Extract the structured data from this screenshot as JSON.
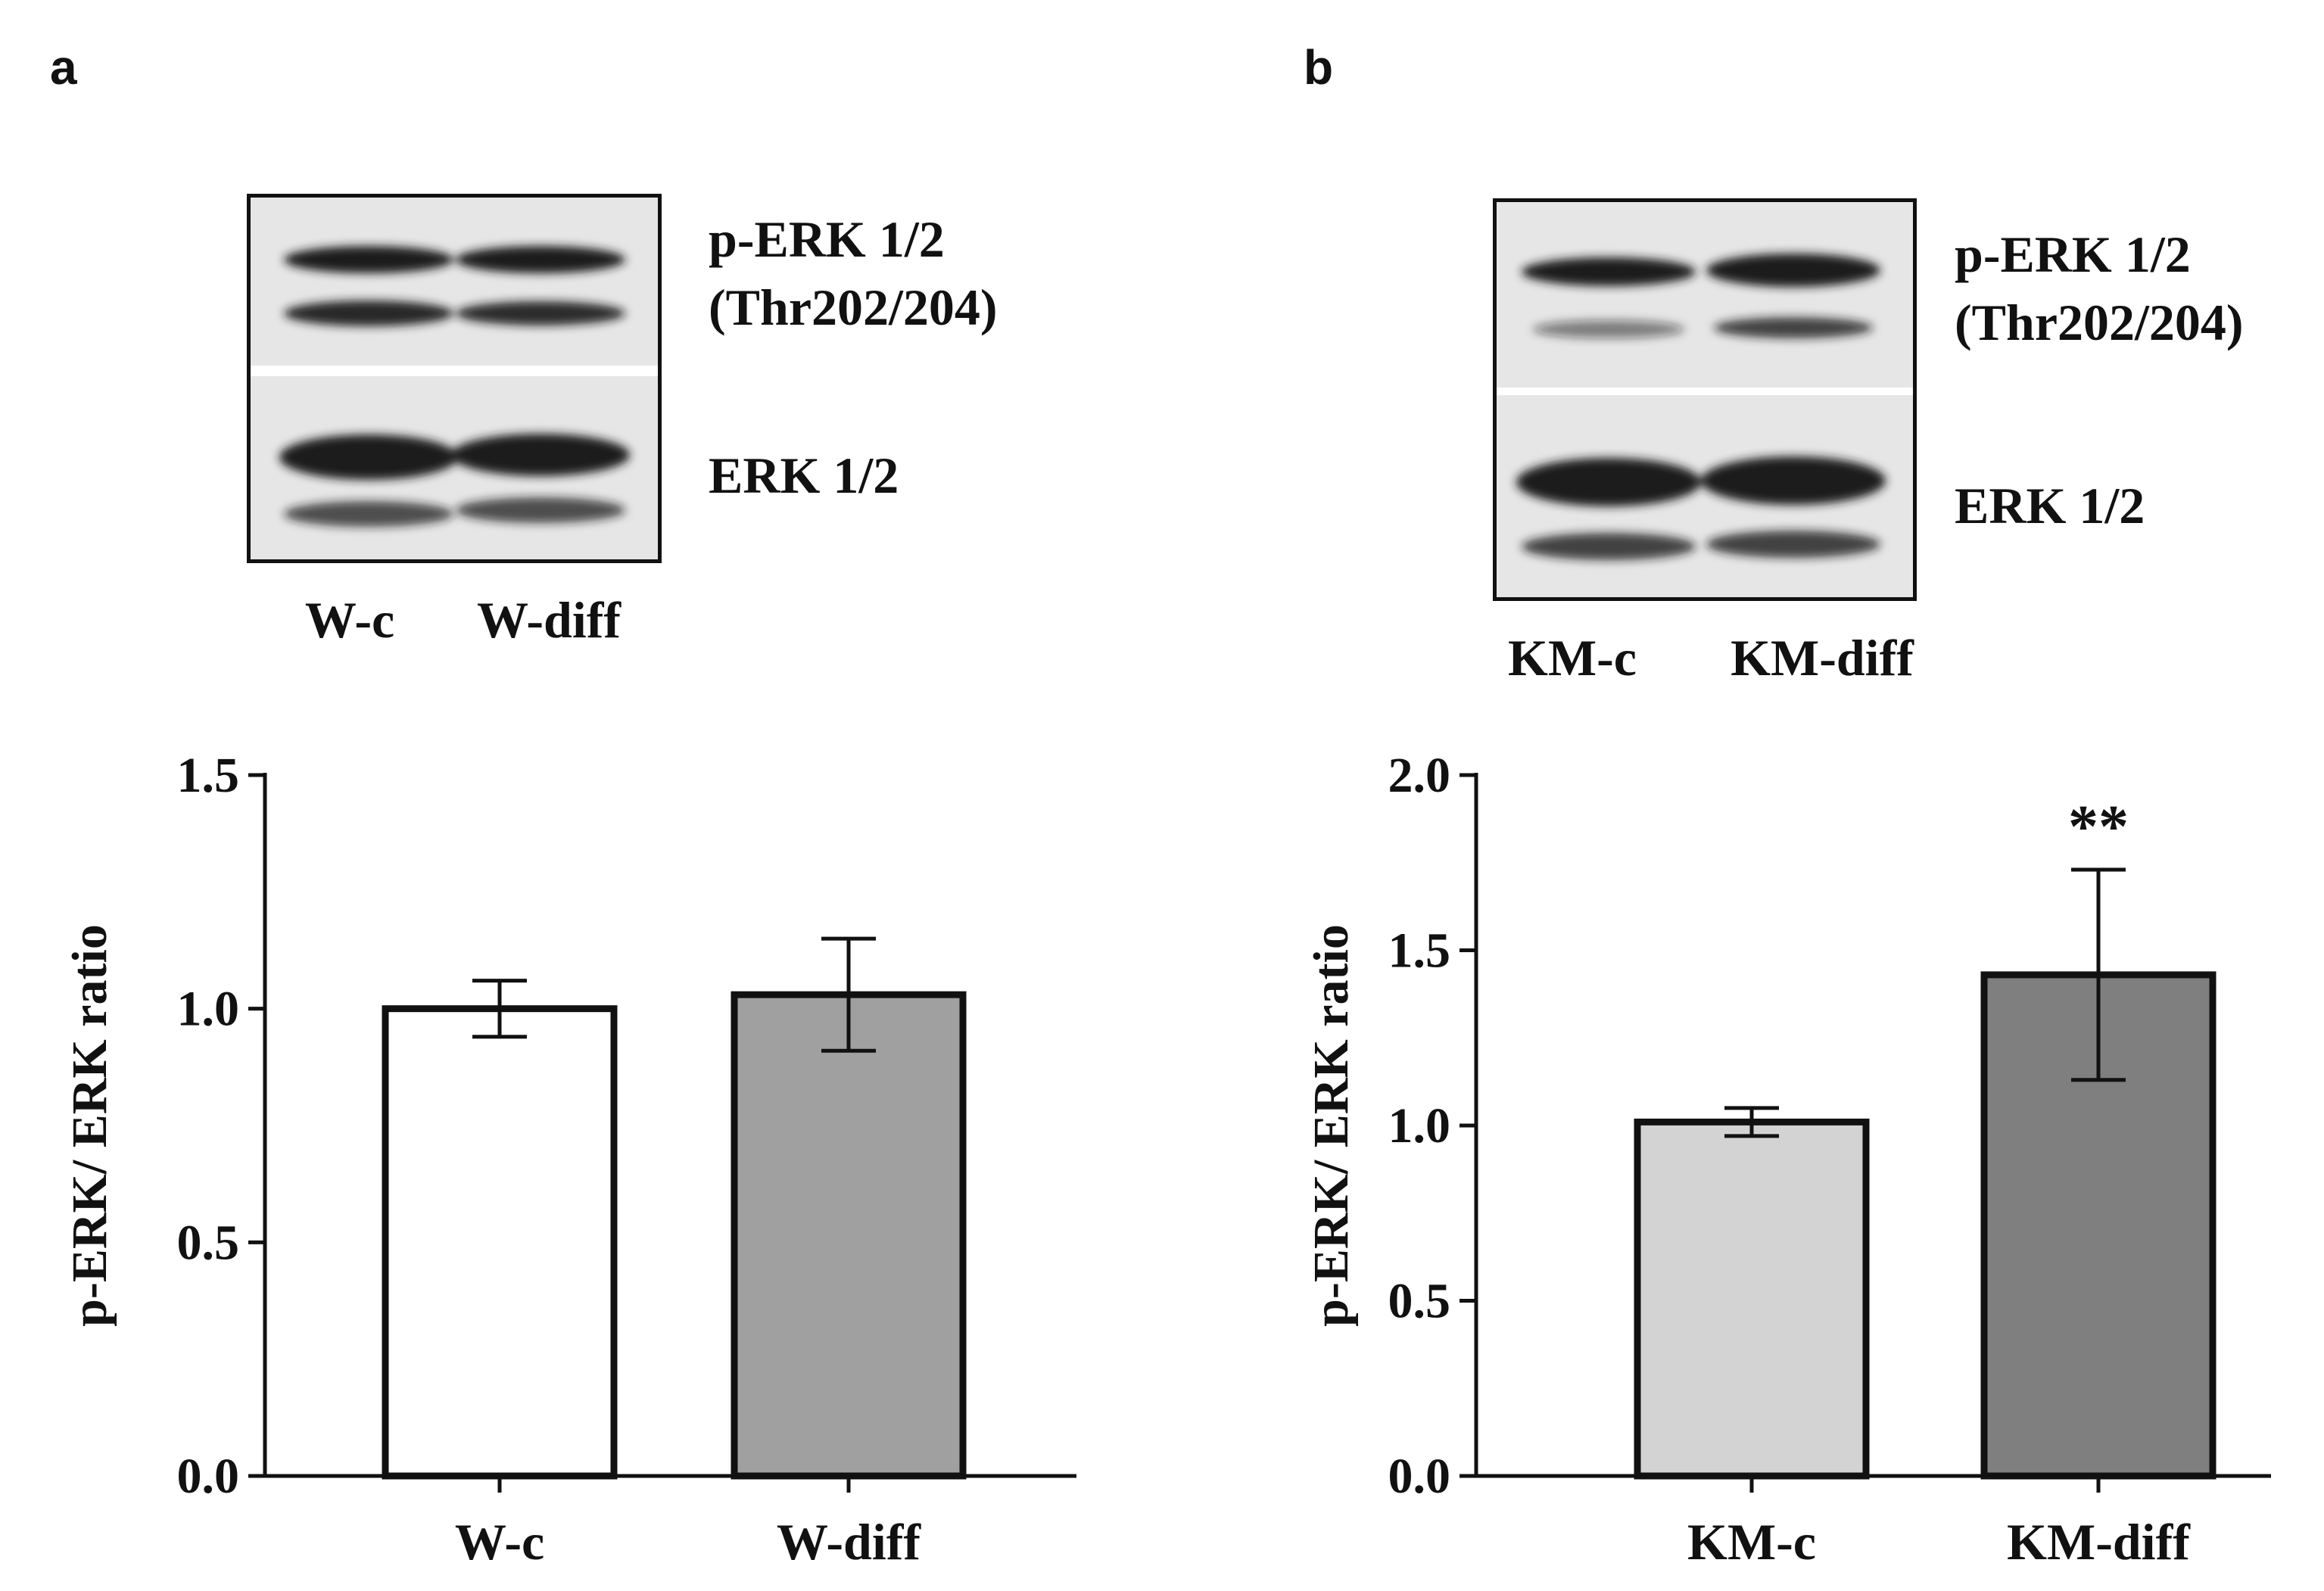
{
  "panels": [
    {
      "letter": "a",
      "blot": {
        "upper_label_line1": "p-ERK 1/2",
        "upper_label_line2": "(Thr202/204)",
        "lower_label": "ERK 1/2",
        "lanes": [
          "W-c",
          "W-diff"
        ]
      }
    },
    {
      "letter": "b",
      "blot": {
        "upper_label_line1": "p-ERK 1/2",
        "upper_label_line2": "(Thr202/204)",
        "lower_label": "ERK 1/2",
        "lanes": [
          "KM-c",
          "KM-diff"
        ]
      }
    }
  ],
  "chart_data": [
    {
      "type": "bar",
      "categories": [
        "W-c",
        "W-diff"
      ],
      "values": [
        1.0,
        1.03
      ],
      "errors": [
        0.06,
        0.12
      ],
      "bar_colors": [
        "#ffffff",
        "#a0a0a0"
      ],
      "ylabel": "p-ERK/ ERK ratio",
      "ylim": [
        0,
        1.5
      ],
      "yticks": [
        "0.0",
        "0.5",
        "1.0",
        "1.5"
      ],
      "annotations": [
        "",
        ""
      ]
    },
    {
      "type": "bar",
      "categories": [
        "KM-c",
        "KM-diff"
      ],
      "values": [
        1.01,
        1.43
      ],
      "errors": [
        0.04,
        0.3
      ],
      "bar_colors": [
        "#d3d3d3",
        "#7f7f7f"
      ],
      "ylabel": "p-ERK/ ERK ratio",
      "ylim": [
        0,
        2.0
      ],
      "yticks": [
        "0.0",
        "0.5",
        "1.0",
        "1.5",
        "2.0"
      ],
      "annotations": [
        "",
        "**"
      ]
    }
  ]
}
